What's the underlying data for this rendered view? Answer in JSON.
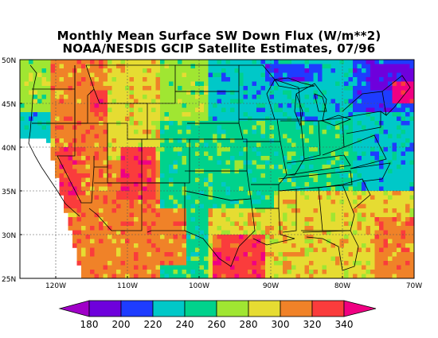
{
  "title_line1": "Monthly Mean Surface SW Down Flux (W/m**2)",
  "title_line2": "NOAA/NESDIS GCIP Satellite Estimates, 07/96",
  "map": {
    "lon_range": [
      -125,
      -70
    ],
    "lat_range": [
      25,
      50
    ],
    "lat_labels": [
      "25N",
      "30N",
      "35N",
      "40N",
      "45N",
      "50N"
    ],
    "lon_labels": [
      "120W",
      "110W",
      "100W",
      "90W",
      "80W",
      "70W"
    ]
  },
  "colorbar": {
    "labels": [
      "180",
      "200",
      "220",
      "240",
      "260",
      "280",
      "300",
      "320",
      "340"
    ],
    "colors": [
      "#a000c8",
      "#6e00dc",
      "#1e3cff",
      "#00c8c8",
      "#00d28c",
      "#a0e632",
      "#e6dc32",
      "#f08228",
      "#fa3c3c",
      "#f00082"
    ]
  }
}
